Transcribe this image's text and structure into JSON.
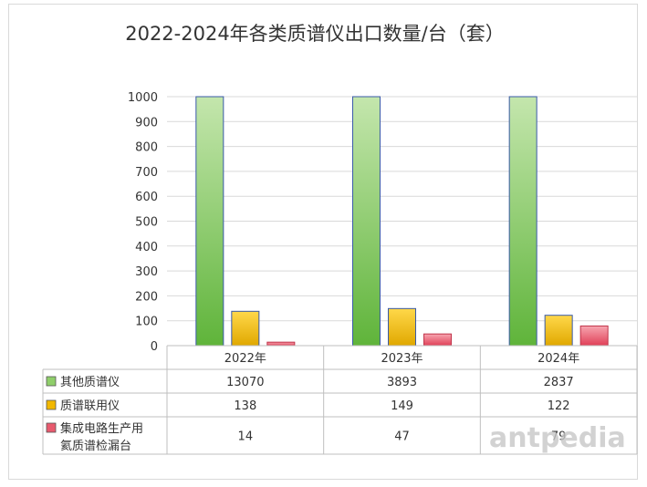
{
  "chart_data": {
    "type": "bar",
    "title": "2022-2024年各类质谱仪出口数量/台（套）",
    "categories": [
      "2022年",
      "2023年",
      "2024年"
    ],
    "ylim": [
      0,
      1000
    ],
    "yticks": [
      0,
      100,
      200,
      300,
      400,
      500,
      600,
      700,
      800,
      900,
      1000
    ],
    "grid": true,
    "legend": "data-table",
    "series": [
      {
        "name": "其他质谱仪",
        "values": [
          13070,
          3893,
          2837
        ],
        "labels": [
          "13070",
          "3893",
          "2837"
        ],
        "color": "#8fce6a"
      },
      {
        "name": "质谱联用仪",
        "values": [
          138,
          149,
          122
        ],
        "labels": [
          "138",
          "149",
          "122"
        ],
        "color": "#f2b800"
      },
      {
        "name": "集成电路生产用氦质谱检漏台",
        "name_lines": [
          "集成电路生产用",
          "氦质谱检漏台"
        ],
        "values": [
          14,
          47,
          79
        ],
        "labels": [
          "14",
          "47",
          "79"
        ],
        "color": "#e85a6e"
      }
    ]
  },
  "watermark": "antpedia"
}
